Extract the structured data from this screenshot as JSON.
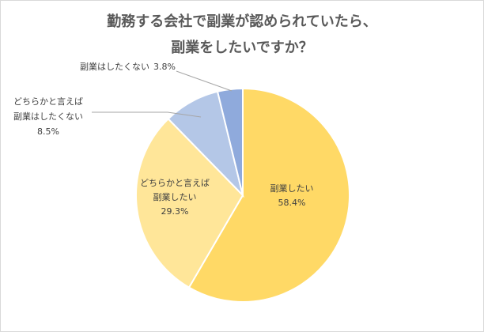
{
  "chart_data": {
    "type": "pie",
    "title_lines": [
      "勤務する会社で副業が認められていたら、",
      "副業をしたいですか？"
    ],
    "start_angle_deg": 0,
    "direction": "clockwise",
    "slices": [
      {
        "label": "副業したい",
        "label_lines": [
          "副業したい"
        ],
        "value": 58.4,
        "value_text": "58.4%",
        "color": "#ffd966",
        "label_position": "inside"
      },
      {
        "label": "どちらかと言えば副業したい",
        "label_lines": [
          "どちらかと言えば",
          "副業したい"
        ],
        "value": 29.3,
        "value_text": "29.3%",
        "color": "#ffe699",
        "label_position": "inside"
      },
      {
        "label": "どちらかと言えば副業はしたくない",
        "label_lines": [
          "どちらかと言えば",
          "副業はしたくない"
        ],
        "value": 8.5,
        "value_text": "8.5%",
        "color": "#b4c7e7",
        "label_position": "outside"
      },
      {
        "label": "副業はしたくない",
        "label_lines": [
          "副業はしたくない"
        ],
        "value": 3.8,
        "value_text": "3.8%",
        "color": "#8faadc",
        "label_position": "outside-inline"
      }
    ],
    "legend": "none",
    "border_color": "#ffffff",
    "leader_line_color": "#a6a6a6"
  }
}
